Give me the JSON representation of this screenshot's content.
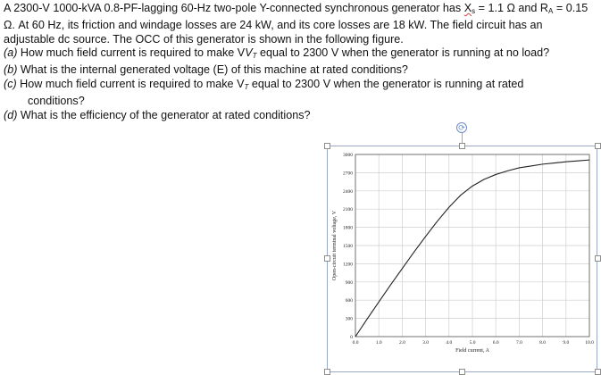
{
  "problem": {
    "intro_1": "A 2300-V 1000-kVA 0.8-PF-lagging 60-Hz two-pole Y-connected synchronous generator has ",
    "xs_symbol": "X",
    "xs_sub": "s",
    "intro_2": " = 1.1 Ω and R",
    "ra_sub": "A",
    "intro_3": " = 0.15 Ω. At 60 Hz, its friction and windage losses are 24 kW, and its core losses are 18 kW. The field circuit has an adjustable dc source. The OCC of this generator is shown in the following figure.",
    "a_label": "(a)",
    "a_text_1": " How much field current is required to make V",
    "a_sub": "T",
    "a_text_2": " equal to 2300 V when the generator is running at no load?",
    "b_label": "(b)",
    "b_text": " What is the internal generated voltage (E) of this machine at rated conditions?",
    "c_label": "(c)",
    "c_text_1": " How much field current is required to make V",
    "c_sub": "T",
    "c_text_2": " equal to 2300 V when the generator is running at rated",
    "c_text_3": "conditions?",
    "d_label": "(d)",
    "d_text": " What is the efficiency of the generator at rated conditions?"
  },
  "toolbar": {
    "rotate_glyph": "⟳"
  },
  "chart_data": {
    "type": "line",
    "title": "",
    "xlabel": "Field current, A",
    "ylabel": "Open-circuit terminal voltage, V",
    "xlim": [
      0,
      10
    ],
    "ylim": [
      0,
      3000
    ],
    "x_ticks": [
      "0.0",
      "1.0",
      "2.0",
      "3.0",
      "4.0",
      "5.0",
      "6.0",
      "7.0",
      "8.0",
      "9.0",
      "10.0"
    ],
    "y_ticks": [
      "0",
      "300",
      "600",
      "900",
      "1200",
      "1500",
      "1800",
      "2100",
      "2400",
      "2700",
      "3000"
    ],
    "grid": true,
    "series": [
      {
        "color": "#222222",
        "x": [
          0,
          0.5,
          1.0,
          1.5,
          2.0,
          2.5,
          3.0,
          3.5,
          4.0,
          4.5,
          5.0,
          5.5,
          6.0,
          6.5,
          7.0,
          7.5,
          8.0,
          8.5,
          9.0,
          9.5,
          10.0
        ],
        "y": [
          0,
          290,
          570,
          850,
          1120,
          1390,
          1650,
          1900,
          2130,
          2330,
          2480,
          2590,
          2670,
          2730,
          2780,
          2810,
          2840,
          2860,
          2880,
          2895,
          2910
        ]
      }
    ]
  }
}
